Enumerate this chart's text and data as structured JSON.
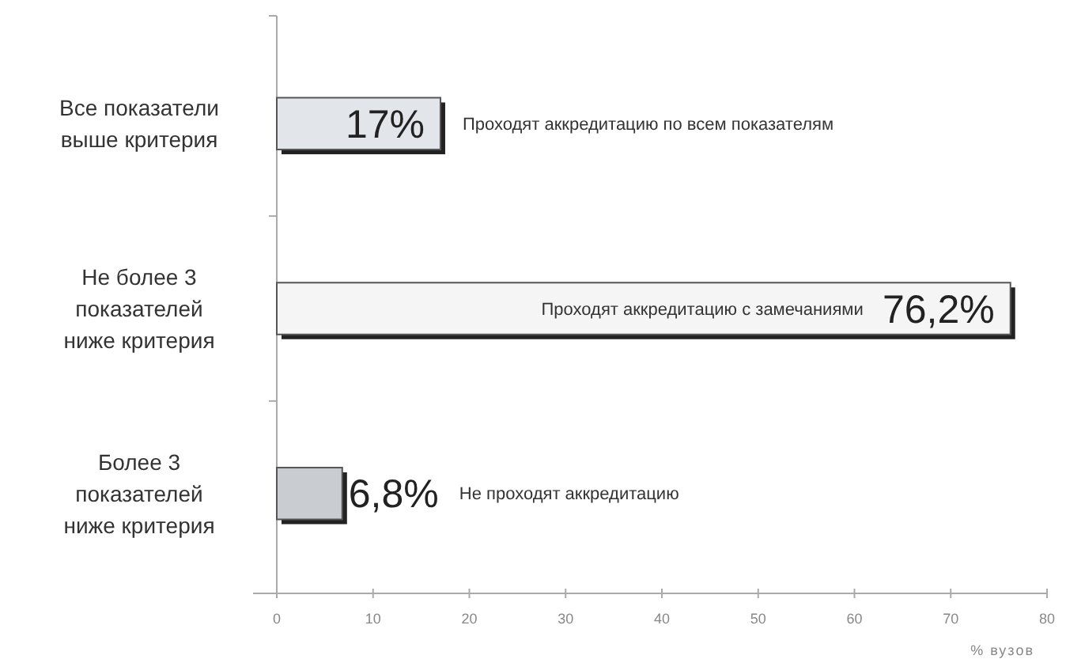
{
  "chart_data": {
    "type": "bar",
    "orientation": "horizontal",
    "categories": [
      "Все показатели выше критерия",
      "Не более 3 показателей ниже критерия",
      "Более 3 показателей ниже критерия"
    ],
    "values": [
      17,
      76.2,
      6.8
    ],
    "colors": [
      "#e2e6ea",
      "#f5f5f5",
      "#c9ccd1"
    ],
    "value_labels": [
      "17%",
      "76,2%",
      "6,8%"
    ],
    "xlim": [
      0,
      80
    ],
    "xticks": [
      0,
      10,
      20,
      30,
      40,
      50,
      60,
      70,
      80
    ],
    "xlabel": "% вузов",
    "grid": false,
    "annotations": [
      "Проходят аккредитацию по всем показателям",
      "Проходят аккредитацию с замечаниями",
      "Не проходят аккредитацию"
    ]
  }
}
